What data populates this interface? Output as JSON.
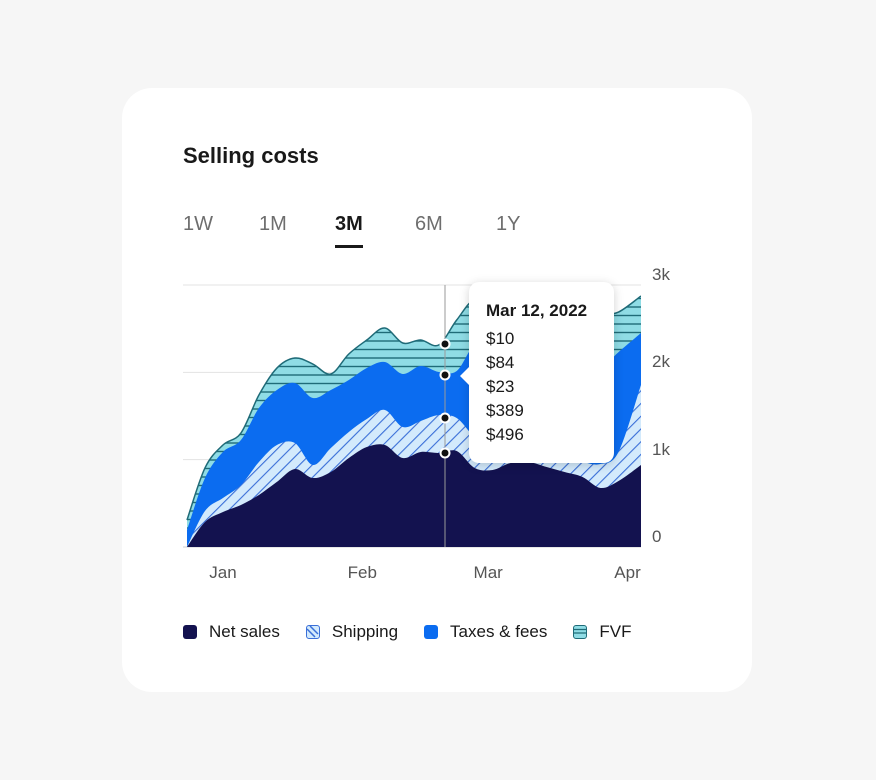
{
  "card": {
    "title": "Selling costs"
  },
  "tabs": [
    {
      "label": "1W"
    },
    {
      "label": "1M"
    },
    {
      "label": "3M",
      "active": true
    },
    {
      "label": "6M"
    },
    {
      "label": "1Y"
    }
  ],
  "tooltip": {
    "date": "Mar 12, 2022",
    "values": [
      "$10",
      "$84",
      "$23",
      "$389",
      "$496"
    ]
  },
  "colors": {
    "net_sales": "#13124f",
    "shipping_fill": "#d3eafc",
    "shipping_hatch": "#3a6fd8",
    "taxes_fees": "#0b6cf0",
    "fvf_fill": "#8fdce5",
    "fvf_line": "#1f6b78",
    "grid": "#e3e3e3"
  },
  "chart_data": {
    "type": "area",
    "stacked": true,
    "grid": true,
    "legend_position": "bottom",
    "x": [
      "2021-12-28",
      "2022-01-01",
      "2022-01-05",
      "2022-01-09",
      "2022-01-13",
      "2022-01-17",
      "2022-01-21",
      "2022-01-25",
      "2022-01-29",
      "2022-02-02",
      "2022-02-06",
      "2022-02-10",
      "2022-02-14",
      "2022-02-18",
      "2022-02-22",
      "2022-02-26",
      "2022-03-02",
      "2022-03-06",
      "2022-03-10",
      "2022-03-14",
      "2022-03-18",
      "2022-03-22",
      "2022-03-26",
      "2022-03-30",
      "2022-04-03",
      "2022-04-07"
    ],
    "xlim": [
      "2021-12-28",
      "2022-04-08"
    ],
    "xticks": [
      {
        "label": "Jan",
        "date": "2022-01-01"
      },
      {
        "label": "Feb",
        "date": "2022-02-01"
      },
      {
        "label": "Mar",
        "date": "2022-03-01"
      },
      {
        "label": "Apr",
        "date": "2022-04-01"
      }
    ],
    "yticks": [
      {
        "label": "0",
        "value": 0
      },
      {
        "label": "1k",
        "value": 1000
      },
      {
        "label": "2k",
        "value": 2000
      },
      {
        "label": "3k",
        "value": 3000
      }
    ],
    "ylim": [
      0,
      3000
    ],
    "highlight_x": "2022-02-20",
    "series": [
      {
        "name": "Net sales",
        "key": "net_sales",
        "values": [
          0,
          286,
          401,
          481,
          596,
          745,
          893,
          790,
          859,
          1019,
          1145,
          1168,
          1019,
          1088,
          1076,
          1099,
          905,
          882,
          962,
          973,
          916,
          859,
          802,
          676,
          756,
          939
        ]
      },
      {
        "name": "Shipping",
        "key": "shipping",
        "values": [
          0,
          126,
          160,
          229,
          377,
          423,
          298,
          149,
          275,
          298,
          320,
          401,
          355,
          355,
          435,
          378,
          355,
          286,
          252,
          183,
          160,
          160,
          171,
          274,
          332,
          916
        ]
      },
      {
        "name": "Taxes & fees",
        "key": "taxes_fees",
        "values": [
          195,
          378,
          527,
          515,
          618,
          630,
          687,
          767,
          664,
          595,
          584,
          549,
          607,
          629,
          493,
          538,
          1053,
          1099,
          950,
          1157,
          1202,
          1156,
          1099,
          1099,
          1144,
          595
        ]
      },
      {
        "name": "FVF",
        "key": "fvf",
        "values": [
          114,
          115,
          80,
          80,
          149,
          251,
          286,
          389,
          183,
          298,
          321,
          390,
          355,
          298,
          309,
          584,
          515,
          389,
          641,
          423,
          344,
          481,
          550,
          607,
          458,
          424
        ]
      }
    ]
  }
}
